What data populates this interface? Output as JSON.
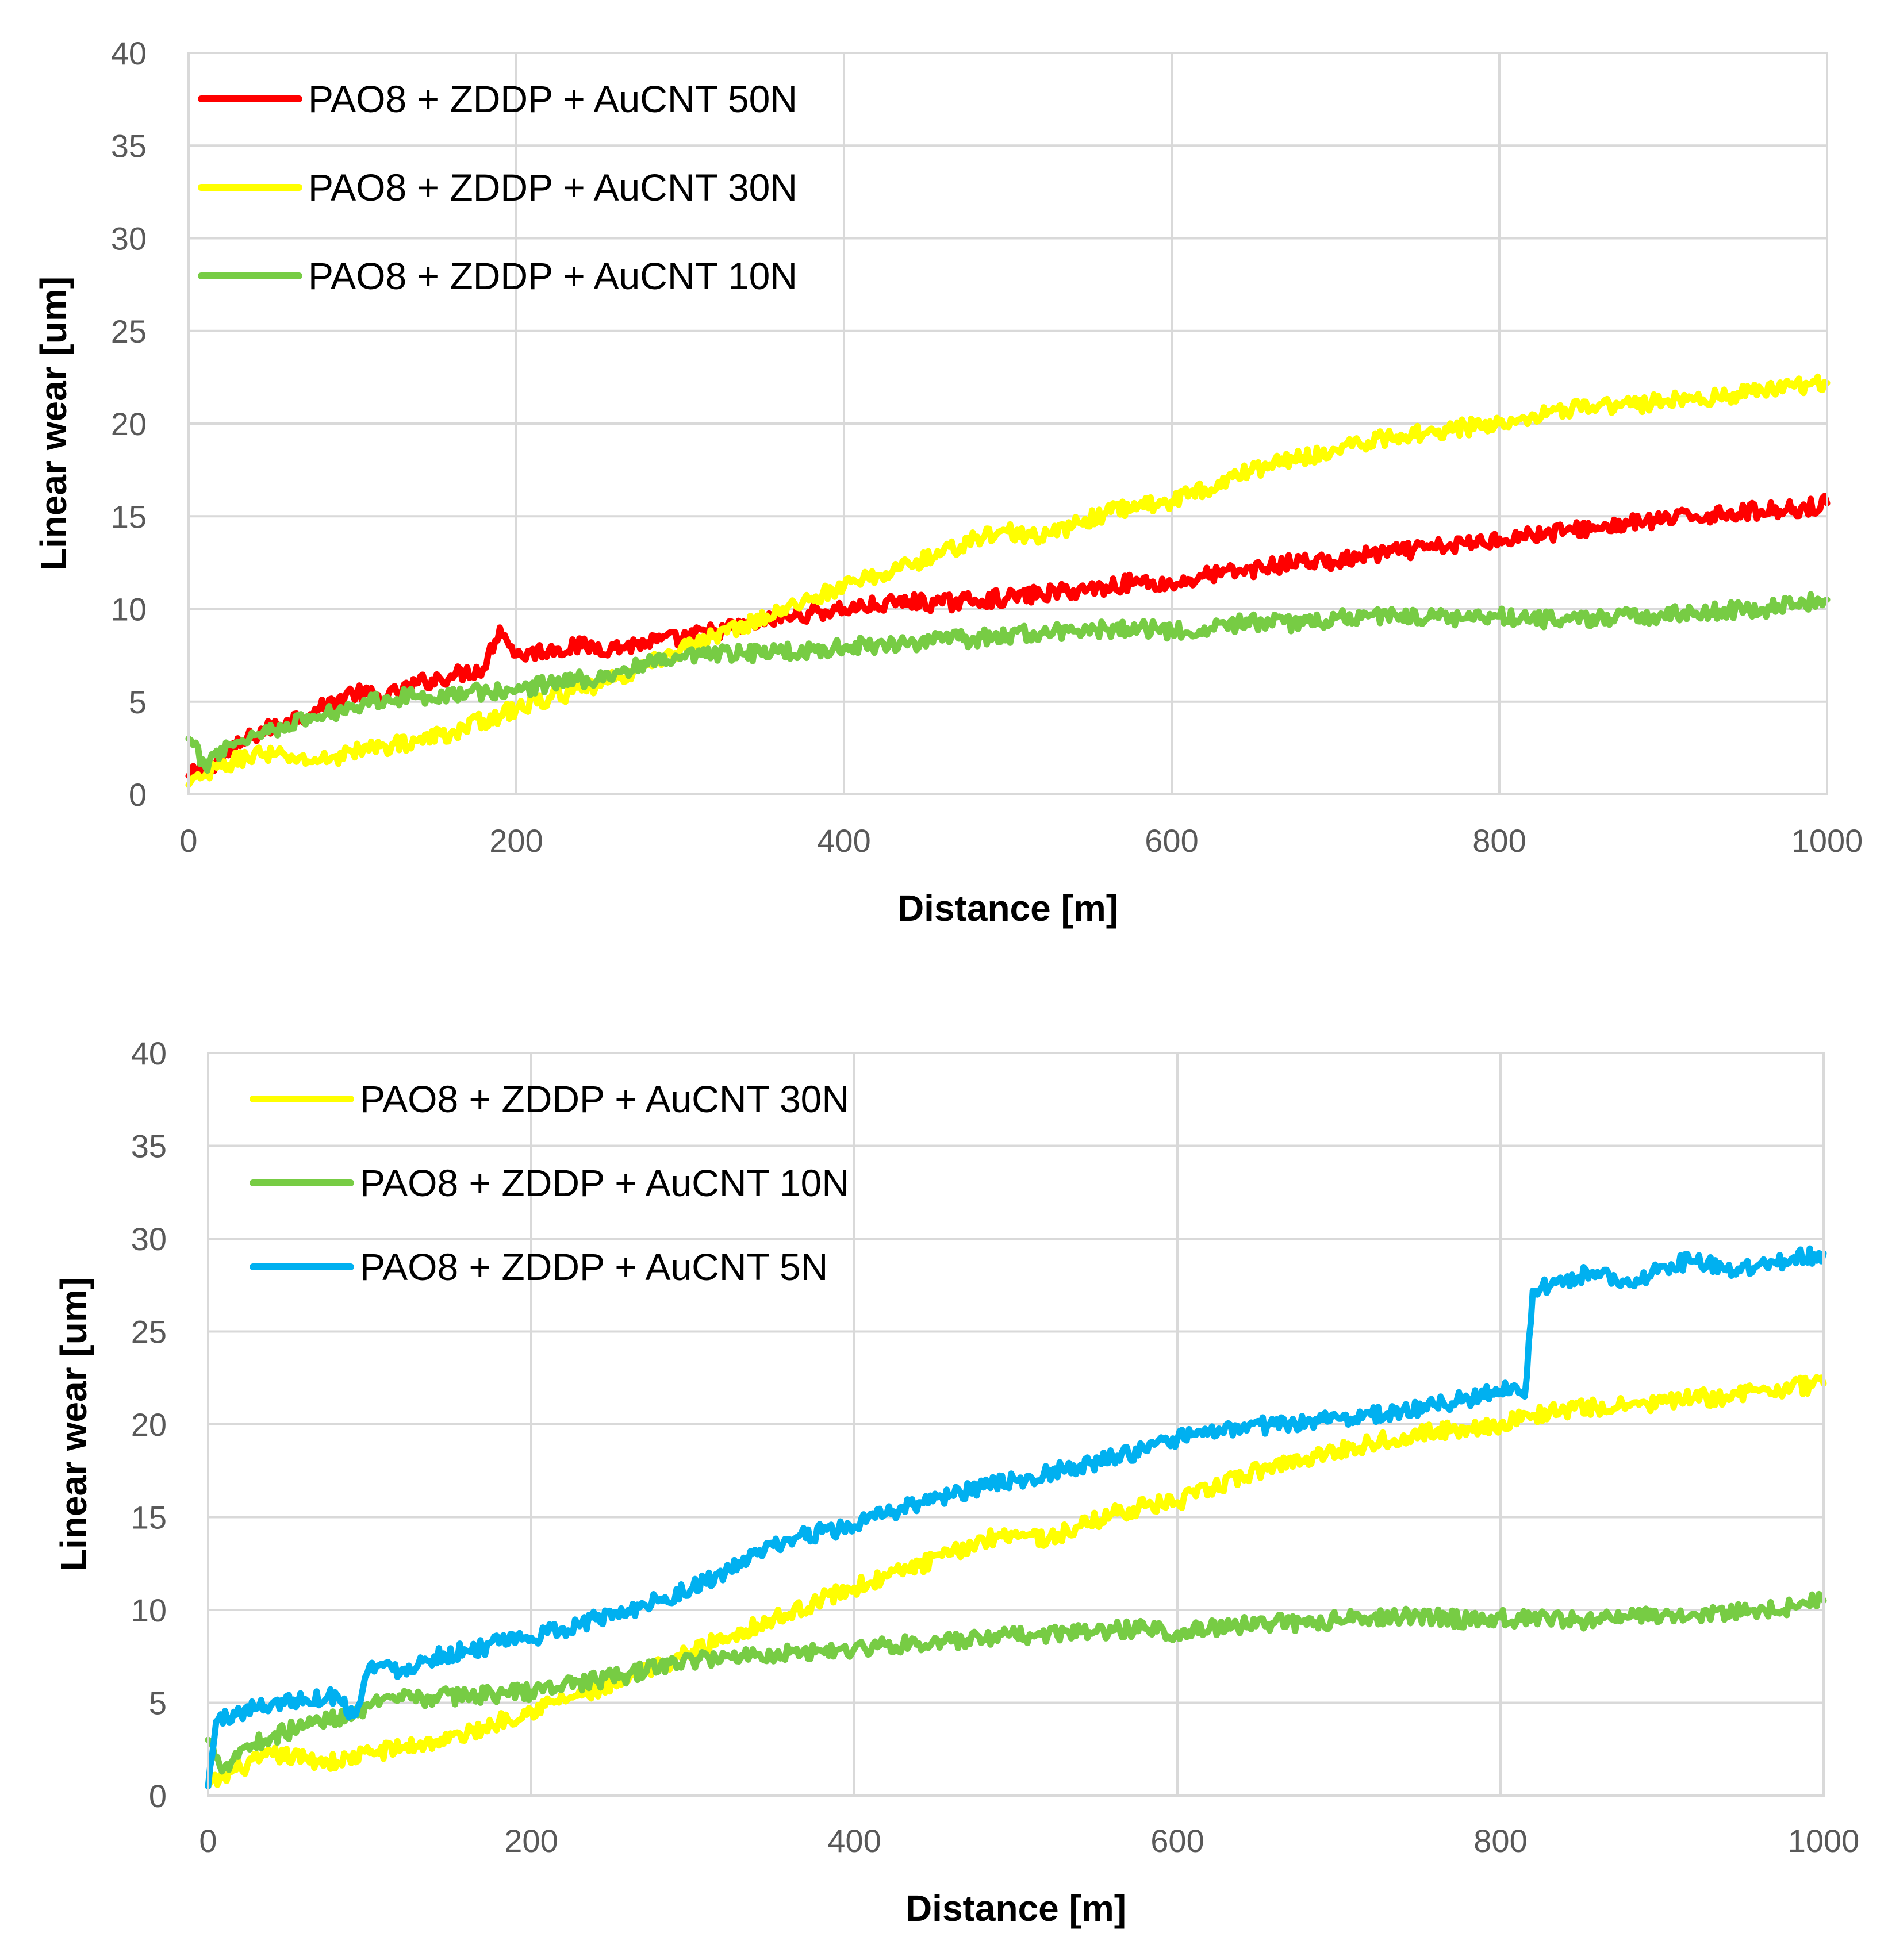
{
  "chart_data": [
    {
      "type": "line",
      "xlabel": "Distance [m]",
      "ylabel": "Linear wear [um]",
      "xlim": [
        0,
        1000
      ],
      "ylim": [
        0,
        40
      ],
      "xticks": [
        "0",
        "200",
        "400",
        "600",
        "800",
        "1000"
      ],
      "yticks": [
        "0",
        "5",
        "10",
        "15",
        "20",
        "25",
        "30",
        "35",
        "40"
      ],
      "grid": true,
      "legend_position": "top-left",
      "series": [
        {
          "name": "PAO8 + ZDDP + AuCNT 50N",
          "color": "#ff0000",
          "x": [
            0,
            10,
            20,
            40,
            60,
            80,
            100,
            120,
            140,
            160,
            180,
            190,
            200,
            220,
            240,
            260,
            280,
            300,
            320,
            340,
            360,
            380,
            400,
            420,
            440,
            460,
            480,
            500,
            520,
            540,
            560,
            580,
            600,
            620,
            640,
            660,
            680,
            700,
            720,
            740,
            760,
            780,
            800,
            820,
            840,
            860,
            880,
            900,
            920,
            940,
            960,
            980,
            1000
          ],
          "y": [
            1.0,
            1.3,
            2.0,
            3.2,
            4.0,
            4.6,
            5.5,
            5.2,
            6.0,
            6.4,
            6.8,
            9.0,
            7.5,
            7.8,
            8.0,
            7.9,
            8.2,
            8.4,
            8.8,
            9.1,
            9.5,
            9.8,
            10.0,
            10.2,
            10.4,
            10.3,
            10.5,
            10.6,
            10.8,
            11.0,
            11.2,
            11.5,
            11.3,
            11.8,
            12.0,
            12.3,
            12.6,
            12.5,
            12.9,
            13.1,
            13.3,
            13.5,
            13.8,
            14.0,
            14.2,
            14.4,
            14.6,
            14.8,
            15.0,
            15.2,
            15.3,
            15.4,
            15.7
          ]
        },
        {
          "name": "PAO8 + ZDDP + AuCNT 30N",
          "color": "#ffff00",
          "x": [
            0,
            10,
            20,
            40,
            60,
            80,
            100,
            120,
            140,
            160,
            180,
            200,
            220,
            240,
            260,
            280,
            300,
            320,
            340,
            360,
            380,
            400,
            420,
            440,
            460,
            480,
            500,
            520,
            540,
            560,
            580,
            600,
            620,
            640,
            660,
            680,
            700,
            720,
            740,
            760,
            780,
            800,
            820,
            840,
            860,
            880,
            900,
            920,
            940,
            960,
            980,
            1000
          ],
          "y": [
            0.5,
            1.0,
            1.5,
            2.2,
            2.0,
            1.8,
            2.3,
            2.6,
            2.9,
            3.3,
            4.0,
            4.6,
            5.2,
            5.6,
            6.2,
            7.0,
            7.8,
            8.5,
            9.2,
            9.8,
            10.6,
            11.2,
            11.8,
            12.4,
            13.0,
            13.8,
            14.2,
            13.8,
            14.5,
            15.2,
            15.6,
            15.8,
            16.5,
            17.2,
            17.8,
            18.2,
            18.6,
            19.0,
            19.4,
            19.6,
            19.8,
            20.0,
            20.5,
            20.8,
            20.9,
            21.0,
            21.2,
            21.4,
            21.5,
            21.8,
            22.0,
            22.2
          ]
        },
        {
          "name": "PAO8 + ZDDP + AuCNT 10N",
          "color": "#77cc44",
          "x": [
            0,
            10,
            20,
            40,
            60,
            80,
            100,
            120,
            140,
            160,
            180,
            200,
            220,
            240,
            260,
            280,
            300,
            320,
            340,
            360,
            380,
            400,
            420,
            440,
            460,
            480,
            500,
            520,
            540,
            560,
            580,
            600,
            620,
            640,
            660,
            680,
            700,
            720,
            740,
            760,
            780,
            800,
            820,
            840,
            860,
            880,
            900,
            920,
            940,
            960,
            980,
            1000
          ],
          "y": [
            3.0,
            1.5,
            2.5,
            3.2,
            3.8,
            4.2,
            4.8,
            5.2,
            5.3,
            5.4,
            5.5,
            5.6,
            6.0,
            6.2,
            6.5,
            7.0,
            7.3,
            7.5,
            7.6,
            7.7,
            7.8,
            7.9,
            8.1,
            8.2,
            8.3,
            8.4,
            8.6,
            8.7,
            8.8,
            8.9,
            9.0,
            8.8,
            9.0,
            9.2,
            9.3,
            9.2,
            9.5,
            9.6,
            9.7,
            9.6,
            9.5,
            9.6,
            9.5,
            9.4,
            9.5,
            9.6,
            9.7,
            9.8,
            9.9,
            10.0,
            10.2,
            10.5
          ]
        }
      ]
    },
    {
      "type": "line",
      "xlabel": "Distance [m]",
      "ylabel": "Linear wear [um]",
      "xlim": [
        0,
        1000
      ],
      "ylim": [
        0,
        40
      ],
      "xticks": [
        "0",
        "200",
        "400",
        "600",
        "800",
        "1000"
      ],
      "yticks": [
        "0",
        "5",
        "10",
        "15",
        "20",
        "25",
        "30",
        "35",
        "40"
      ],
      "grid": true,
      "legend_position": "top-left",
      "series": [
        {
          "name": "PAO8 + ZDDP + AuCNT 30N",
          "color": "#ffff00",
          "x": [
            0,
            10,
            20,
            40,
            60,
            80,
            100,
            120,
            140,
            160,
            180,
            200,
            220,
            240,
            260,
            280,
            300,
            320,
            340,
            360,
            380,
            400,
            420,
            440,
            460,
            480,
            500,
            520,
            540,
            560,
            580,
            600,
            620,
            640,
            660,
            680,
            700,
            720,
            740,
            760,
            780,
            800,
            820,
            840,
            860,
            880,
            900,
            920,
            940,
            960,
            980,
            1000
          ],
          "y": [
            0.5,
            1.0,
            1.5,
            2.2,
            2.0,
            1.8,
            2.3,
            2.6,
            2.9,
            3.3,
            4.0,
            4.6,
            5.2,
            5.6,
            6.2,
            7.0,
            7.8,
            8.5,
            9.2,
            9.8,
            10.6,
            11.2,
            11.8,
            12.4,
            13.0,
            13.8,
            14.2,
            13.8,
            14.5,
            15.2,
            15.6,
            15.8,
            16.5,
            17.2,
            17.8,
            18.2,
            18.6,
            19.0,
            19.4,
            19.6,
            19.8,
            20.0,
            20.5,
            20.8,
            20.9,
            21.0,
            21.2,
            21.4,
            21.5,
            21.8,
            22.0,
            22.2
          ]
        },
        {
          "name": "PAO8 + ZDDP + AuCNT 10N",
          "color": "#77cc44",
          "x": [
            0,
            10,
            20,
            40,
            60,
            80,
            100,
            120,
            140,
            160,
            180,
            200,
            220,
            240,
            260,
            280,
            300,
            320,
            340,
            360,
            380,
            400,
            420,
            440,
            460,
            480,
            500,
            520,
            540,
            560,
            580,
            600,
            620,
            640,
            660,
            680,
            700,
            720,
            740,
            760,
            780,
            800,
            820,
            840,
            860,
            880,
            900,
            920,
            940,
            960,
            980,
            1000
          ],
          "y": [
            3.0,
            1.5,
            2.5,
            3.2,
            3.8,
            4.2,
            4.8,
            5.2,
            5.3,
            5.4,
            5.5,
            5.6,
            6.0,
            6.2,
            6.5,
            7.0,
            7.3,
            7.5,
            7.6,
            7.7,
            7.8,
            7.9,
            8.1,
            8.2,
            8.3,
            8.4,
            8.6,
            8.7,
            8.8,
            8.9,
            9.0,
            8.8,
            9.0,
            9.2,
            9.3,
            9.2,
            9.5,
            9.6,
            9.7,
            9.6,
            9.5,
            9.6,
            9.5,
            9.4,
            9.5,
            9.6,
            9.7,
            9.8,
            9.9,
            10.0,
            10.2,
            10.5
          ]
        },
        {
          "name": "PAO8 + ZDDP + AuCNT 5N",
          "color": "#00b0f0",
          "x": [
            0,
            5,
            20,
            40,
            60,
            80,
            90,
            100,
            120,
            140,
            160,
            180,
            200,
            220,
            240,
            260,
            280,
            300,
            320,
            340,
            360,
            380,
            400,
            420,
            440,
            460,
            480,
            500,
            520,
            540,
            560,
            580,
            600,
            620,
            640,
            660,
            680,
            700,
            720,
            740,
            760,
            780,
            800,
            810,
            815,
            820,
            840,
            860,
            880,
            900,
            920,
            940,
            960,
            980,
            1000
          ],
          "y": [
            0.5,
            4.0,
            4.5,
            5.0,
            5.2,
            5.4,
            4.3,
            7.0,
            6.8,
            7.5,
            7.8,
            8.2,
            8.5,
            9.0,
            9.5,
            10.0,
            10.6,
            11.2,
            12.0,
            13.0,
            13.8,
            14.2,
            14.5,
            15.2,
            15.8,
            16.2,
            16.6,
            17.0,
            17.4,
            17.8,
            18.2,
            18.6,
            19.2,
            19.6,
            19.8,
            20.0,
            20.1,
            20.3,
            20.5,
            20.8,
            21.0,
            21.4,
            21.8,
            22.0,
            21.5,
            27.2,
            27.8,
            28.2,
            27.5,
            28.5,
            28.8,
            28.3,
            28.6,
            28.9,
            29.2
          ]
        }
      ]
    }
  ]
}
